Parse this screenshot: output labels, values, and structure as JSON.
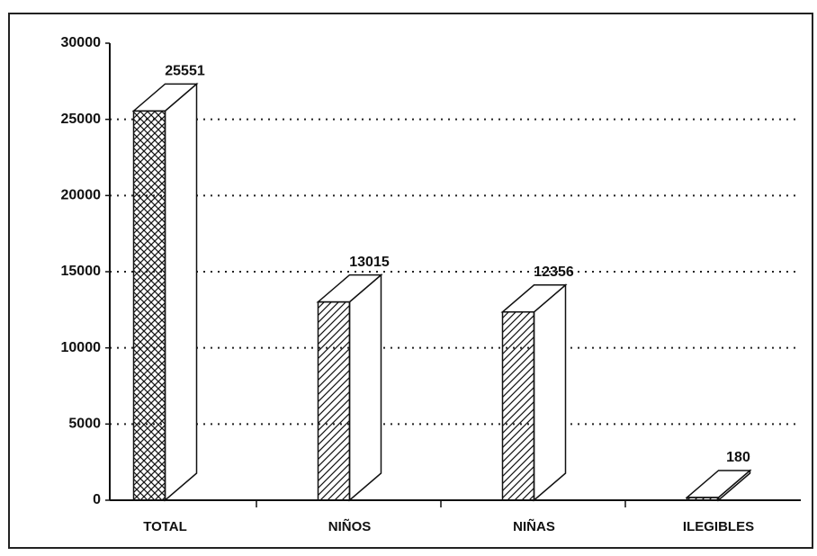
{
  "chart_data": {
    "type": "bar3d",
    "categories": [
      "TOTAL",
      "NIÑOS",
      "NIÑAS",
      "ILEGIBLES"
    ],
    "values": [
      25551,
      13015,
      12356,
      180
    ],
    "color": "#111111",
    "patterns": [
      "cross",
      "diagonal",
      "diagonal",
      "diagonal"
    ],
    "ylim": [
      0,
      30000
    ],
    "yticks": [
      0,
      5000,
      10000,
      15000,
      20000,
      25000,
      30000
    ],
    "grid": true
  }
}
